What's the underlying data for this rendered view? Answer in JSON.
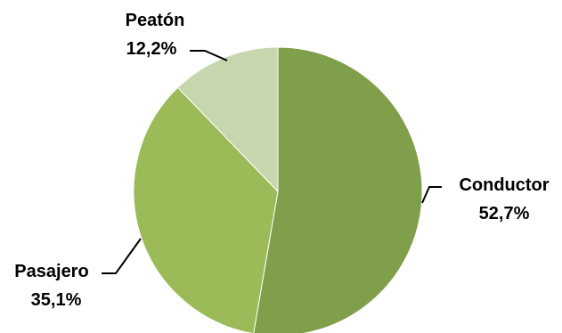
{
  "chart_data": {
    "type": "pie",
    "title": "",
    "labels": [
      "Conductor",
      "Pasajero",
      "Peatón"
    ],
    "values": [
      52.7,
      35.1,
      12.2
    ],
    "value_labels": [
      "52,7%",
      "35,1%",
      "12,2%"
    ],
    "colors": [
      "#7f9f4a",
      "#9bbb59",
      "#c6d6ad"
    ],
    "start_angle_deg": 0,
    "direction": "clockwise",
    "legend": "none",
    "data_labels": "outside-with-leader-lines"
  }
}
